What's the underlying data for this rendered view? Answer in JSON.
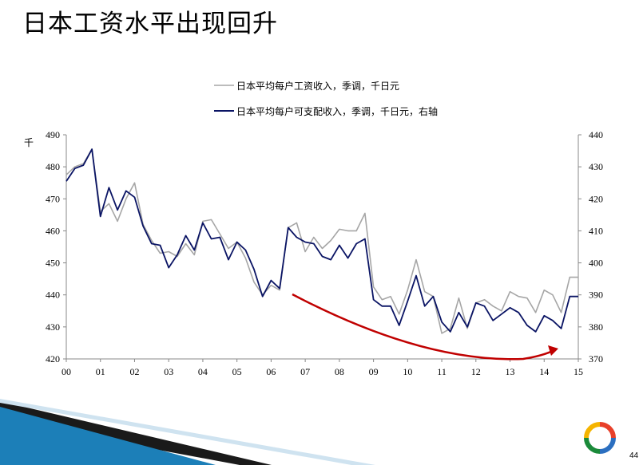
{
  "slide": {
    "title": "日本工资水平出现回升",
    "page_number": "44"
  },
  "colors": {
    "gray_series": "#a6a6a6",
    "navy_series": "#0a1464",
    "annotation_arrow": "#c00000",
    "logo_colors": [
      "#e8402a",
      "#1b8a3a",
      "#f5b400",
      "#2b6fc0"
    ]
  },
  "decorations": {
    "arrow_icon": "curved-arrow",
    "corner_graphic": "blue-diagonal-swoosh",
    "logo_icon": "ring-logo"
  },
  "chart_data": {
    "type": "line",
    "title": "",
    "ylabel": "千",
    "y2label": "",
    "x_tick_labels": [
      "00",
      "01",
      "02",
      "03",
      "04",
      "05",
      "06",
      "07",
      "08",
      "09",
      "10",
      "11",
      "12",
      "13",
      "14",
      "15"
    ],
    "xlim": [
      0,
      15
    ],
    "ylim": [
      420,
      490
    ],
    "y_ticks": [
      420,
      430,
      440,
      450,
      460,
      470,
      480,
      490
    ],
    "y2lim": [
      370,
      440
    ],
    "y2_ticks": [
      370,
      380,
      390,
      400,
      410,
      420,
      430,
      440
    ],
    "grid": false,
    "legend_placement": "top-center",
    "series": [
      {
        "name": "日本平均每户工资收入，季调，千日元",
        "axis": "left",
        "color": "#a6a6a6",
        "x": [
          0.0,
          0.25,
          0.5,
          0.75,
          1.0,
          1.25,
          1.5,
          1.75,
          2.0,
          2.25,
          2.5,
          2.75,
          3.0,
          3.25,
          3.5,
          3.75,
          4.0,
          4.25,
          4.5,
          4.75,
          5.0,
          5.25,
          5.5,
          5.75,
          6.0,
          6.25,
          6.5,
          6.75,
          7.0,
          7.25,
          7.5,
          7.75,
          8.0,
          8.25,
          8.5,
          8.75,
          9.0,
          9.25,
          9.5,
          9.75,
          10.0,
          10.25,
          10.5,
          10.75,
          11.0,
          11.25,
          11.5,
          11.75,
          12.0,
          12.25,
          12.5,
          12.75,
          13.0,
          13.25,
          13.5,
          13.75,
          14.0,
          14.25,
          14.5,
          14.75,
          15.0
        ],
        "values": [
          477.5,
          480,
          481,
          485.5,
          466,
          468.5,
          463,
          470,
          475,
          462,
          457,
          453,
          453.5,
          452,
          456,
          452.5,
          463,
          463.5,
          459,
          454.5,
          456.5,
          451.5,
          444,
          440,
          443,
          441.5,
          461,
          462.5,
          453.5,
          458,
          454.5,
          457,
          460.5,
          460,
          460,
          465.5,
          442.5,
          438.5,
          439.5,
          434,
          441.5,
          451,
          441,
          439.5,
          428,
          429.5,
          439,
          429.5,
          437.5,
          438.5,
          436.5,
          435,
          441,
          439.5,
          439,
          434.5,
          441.5,
          440,
          434.5,
          445.5,
          445.5
        ]
      },
      {
        "name": "日本平均每户可支配收入，季调，千日元，右轴",
        "axis": "right",
        "color": "#0a1464",
        "x": [
          0.0,
          0.25,
          0.5,
          0.75,
          1.0,
          1.25,
          1.5,
          1.75,
          2.0,
          2.25,
          2.5,
          2.75,
          3.0,
          3.25,
          3.5,
          3.75,
          4.0,
          4.25,
          4.5,
          4.75,
          5.0,
          5.25,
          5.5,
          5.75,
          6.0,
          6.25,
          6.5,
          6.75,
          7.0,
          7.25,
          7.5,
          7.75,
          8.0,
          8.25,
          8.5,
          8.75,
          9.0,
          9.25,
          9.5,
          9.75,
          10.0,
          10.25,
          10.5,
          10.75,
          11.0,
          11.25,
          11.5,
          11.75,
          12.0,
          12.25,
          12.5,
          12.75,
          13.0,
          13.25,
          13.5,
          13.75,
          14.0,
          14.25,
          14.5,
          14.75,
          15.0
        ],
        "values": [
          425.5,
          429.5,
          430.5,
          435.5,
          414.5,
          423.5,
          416.5,
          422.5,
          420.5,
          411.5,
          406,
          405.5,
          398.5,
          402.5,
          408.5,
          404,
          412.5,
          407.5,
          408,
          401,
          406.5,
          404,
          398,
          389.5,
          394.5,
          392,
          411,
          408,
          406.5,
          406,
          402,
          401,
          405.5,
          401.5,
          406,
          407.5,
          388.5,
          386.5,
          386.5,
          380.5,
          388,
          396,
          386.5,
          389.5,
          381.5,
          378.5,
          384.5,
          380,
          387.5,
          386.5,
          382,
          384,
          386,
          384.5,
          380.5,
          378.5,
          383.5,
          382,
          379.5,
          389.5,
          389.5
        ]
      }
    ]
  }
}
